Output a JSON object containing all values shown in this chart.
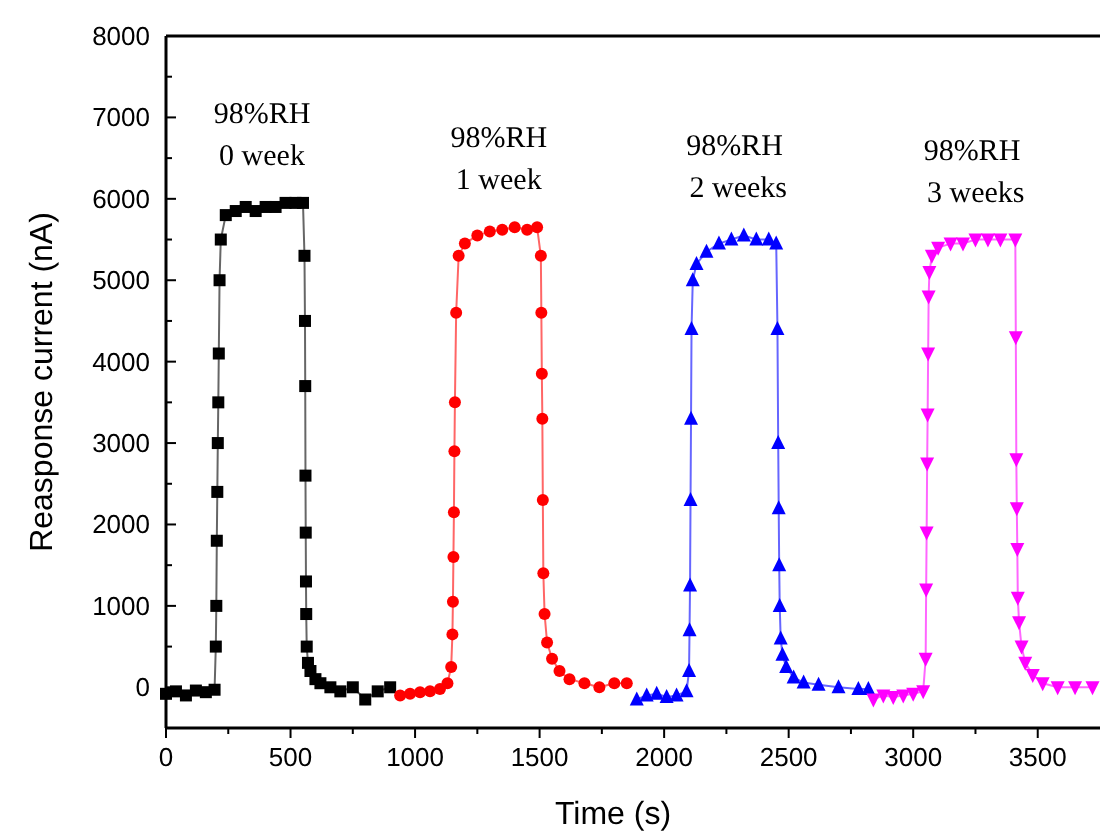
{
  "chart_data": {
    "type": "line",
    "xlabel": "Time (s)",
    "ylabel": "Reasponse current (nA)",
    "xlim": [
      0,
      3750
    ],
    "ylim": [
      -500,
      8000
    ],
    "xticks": [
      0,
      500,
      1000,
      1500,
      2000,
      2500,
      3000,
      3500
    ],
    "yticks": [
      0,
      1000,
      2000,
      3000,
      4000,
      5000,
      6000,
      7000,
      8000
    ],
    "grid": false,
    "line_style": "solid",
    "annotations": [
      "98%RH\n0 week",
      "98%RH\n1 week",
      "98%RH\n 2 weeks",
      "98%RH\n 3 weeks"
    ],
    "series": [
      {
        "color": "#000000",
        "marker": "square",
        "x": [
          0,
          40,
          80,
          120,
          160,
          195,
          200,
          202,
          204,
          206,
          208,
          210,
          212,
          215,
          220,
          240,
          280,
          320,
          360,
          400,
          440,
          480,
          520,
          550,
          556,
          558,
          559,
          560,
          561,
          562,
          563,
          565,
          570,
          580,
          600,
          620,
          660,
          700,
          750,
          800,
          850,
          900
        ],
        "values": [
          -80,
          -50,
          -100,
          -40,
          -60,
          -30,
          500,
          1000,
          1800,
          2400,
          3000,
          3500,
          4100,
          5000,
          5500,
          5800,
          5850,
          5900,
          5850,
          5900,
          5900,
          5950,
          5950,
          5950,
          5300,
          4500,
          3700,
          2600,
          1900,
          1300,
          900,
          500,
          300,
          200,
          100,
          50,
          0,
          -50,
          0,
          -150,
          -50,
          0
        ]
      },
      {
        "color": "#ff0000",
        "marker": "circle",
        "x": [
          940,
          980,
          1020,
          1060,
          1100,
          1130,
          1145,
          1150,
          1152,
          1154,
          1156,
          1158,
          1160,
          1165,
          1175,
          1200,
          1250,
          1300,
          1350,
          1400,
          1450,
          1490,
          1505,
          1507,
          1509,
          1511,
          1513,
          1515,
          1520,
          1530,
          1550,
          1580,
          1620,
          1680,
          1740,
          1800,
          1850
        ],
        "values": [
          -100,
          -80,
          -60,
          -50,
          -20,
          50,
          250,
          650,
          1050,
          1600,
          2150,
          2900,
          3500,
          4600,
          5300,
          5450,
          5550,
          5600,
          5620,
          5650,
          5620,
          5650,
          5300,
          4600,
          3850,
          3300,
          2300,
          1400,
          900,
          550,
          350,
          200,
          100,
          50,
          0,
          50,
          50
        ]
      },
      {
        "color": "#0000ff",
        "marker": "triangle",
        "x": [
          1890,
          1930,
          1970,
          2010,
          2050,
          2090,
          2100,
          2102,
          2104,
          2106,
          2108,
          2110,
          2115,
          2130,
          2170,
          2220,
          2270,
          2320,
          2370,
          2420,
          2450,
          2455,
          2458,
          2460,
          2462,
          2464,
          2468,
          2475,
          2490,
          2520,
          2560,
          2620,
          2700,
          2780,
          2820
        ],
        "values": [
          -150,
          -100,
          -80,
          -120,
          -100,
          -50,
          200,
          700,
          1250,
          2300,
          3300,
          4400,
          5000,
          5200,
          5350,
          5450,
          5500,
          5550,
          5500,
          5500,
          5450,
          4400,
          3000,
          2200,
          1500,
          1000,
          600,
          400,
          250,
          120,
          60,
          30,
          0,
          -20,
          -20
        ]
      },
      {
        "color": "#ff00ff",
        "marker": "triangle-down",
        "x": [
          2840,
          2880,
          2920,
          2960,
          3000,
          3040,
          3050,
          3052,
          3054,
          3056,
          3058,
          3060,
          3062,
          3065,
          3075,
          3100,
          3150,
          3200,
          3250,
          3300,
          3350,
          3410,
          3412,
          3414,
          3416,
          3418,
          3420,
          3425,
          3435,
          3450,
          3480,
          3520,
          3580,
          3650,
          3720
        ],
        "values": [
          -150,
          -100,
          -120,
          -100,
          -80,
          -50,
          350,
          1200,
          1900,
          2750,
          3350,
          4100,
          4800,
          5100,
          5300,
          5400,
          5450,
          5450,
          5500,
          5500,
          5500,
          5500,
          4300,
          2800,
          2200,
          1700,
          1100,
          800,
          500,
          300,
          150,
          50,
          0,
          0,
          0
        ]
      }
    ]
  }
}
